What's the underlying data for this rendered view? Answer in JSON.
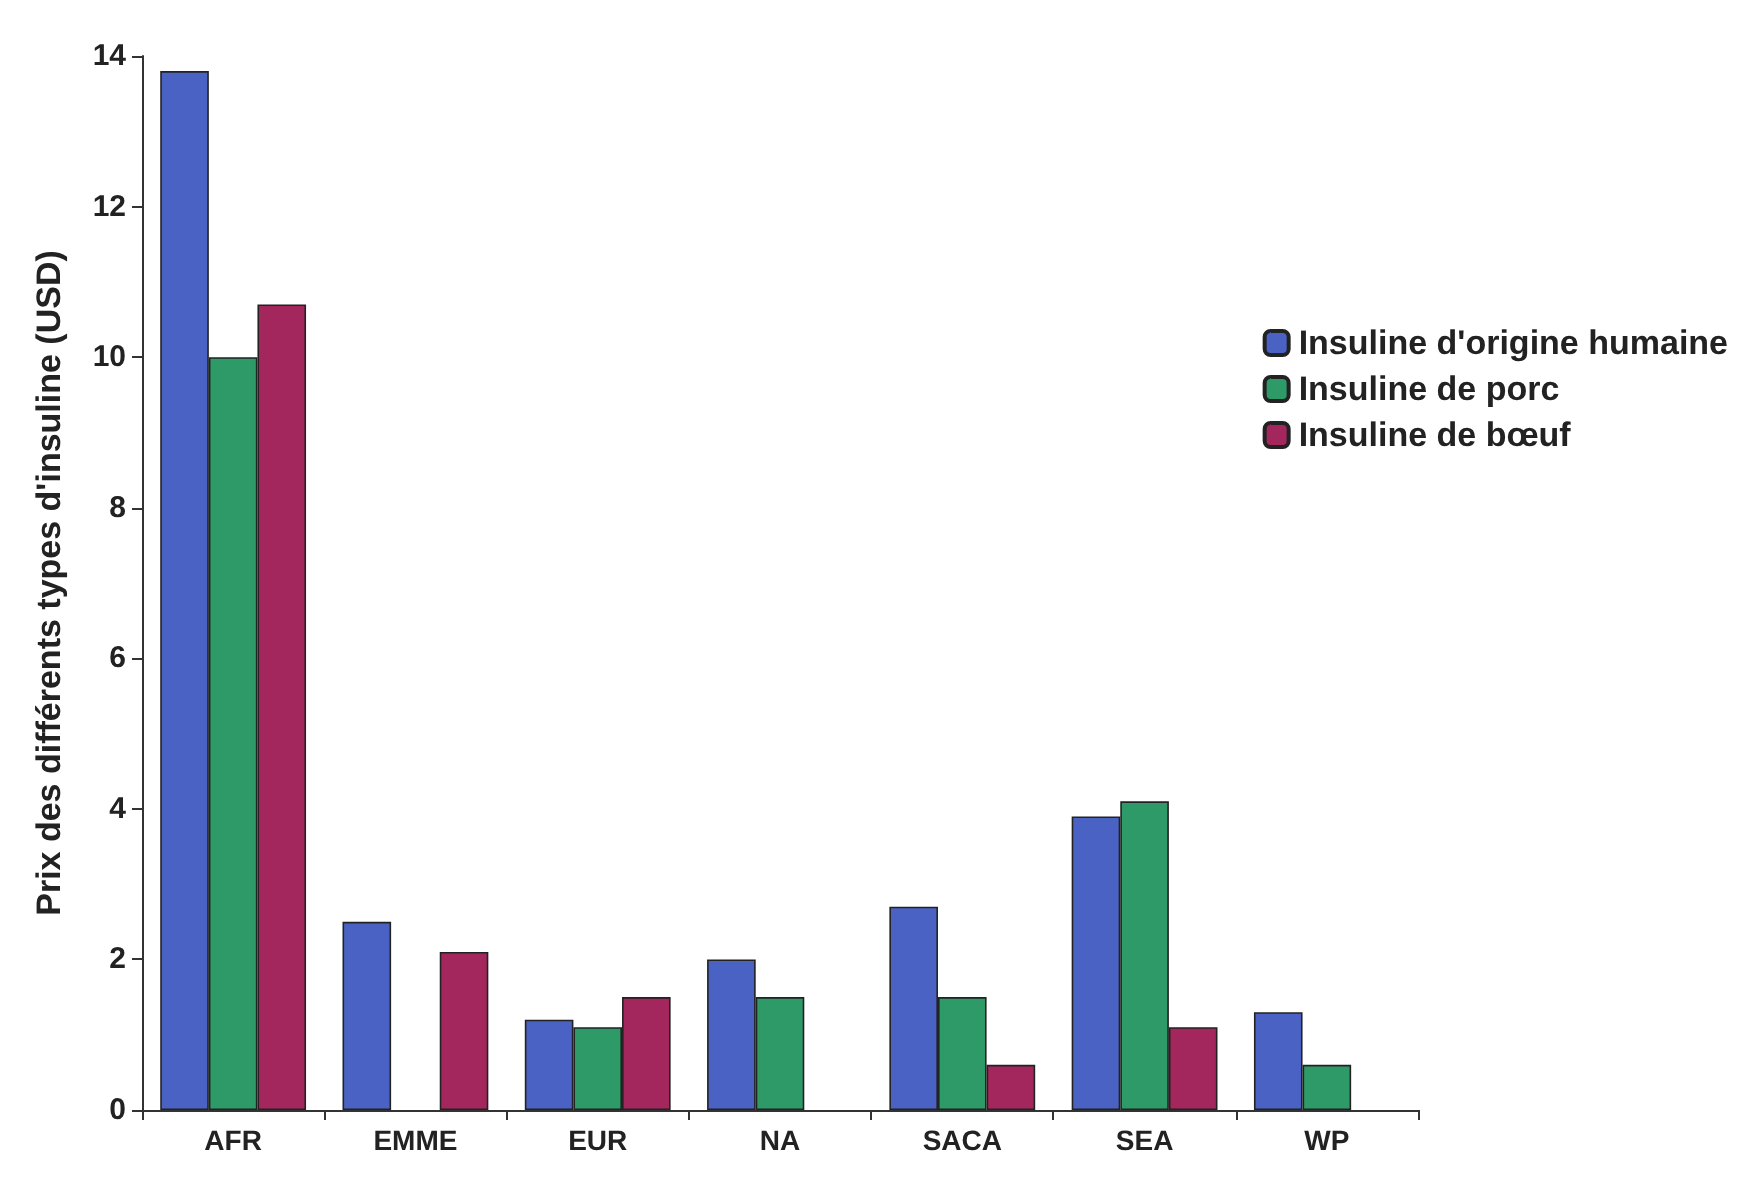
{
  "chart_data": {
    "type": "bar",
    "ylabel": "Prix des différents types d'insuline (USD)",
    "categories": [
      "AFR",
      "EMME",
      "EUR",
      "NA",
      "SACA",
      "SEA",
      "WP"
    ],
    "series": [
      {
        "name": "Insuline d'origine humaine",
        "color": "#4a62c4",
        "values": [
          13.8,
          2.5,
          1.2,
          2.0,
          2.7,
          3.9,
          1.3
        ]
      },
      {
        "name": "Insuline de porc",
        "color": "#2e9a68",
        "values": [
          10.0,
          0,
          1.1,
          1.5,
          1.5,
          4.1,
          0.6
        ]
      },
      {
        "name": "Insuline de bœuf",
        "color": "#a3275c",
        "values": [
          10.7,
          2.1,
          1.5,
          0,
          0.6,
          1.1,
          0
        ]
      }
    ],
    "ylim": [
      0,
      14
    ],
    "yticks": [
      0,
      2,
      4,
      6,
      8,
      10,
      12,
      14
    ],
    "grid": false,
    "legend": "right"
  }
}
